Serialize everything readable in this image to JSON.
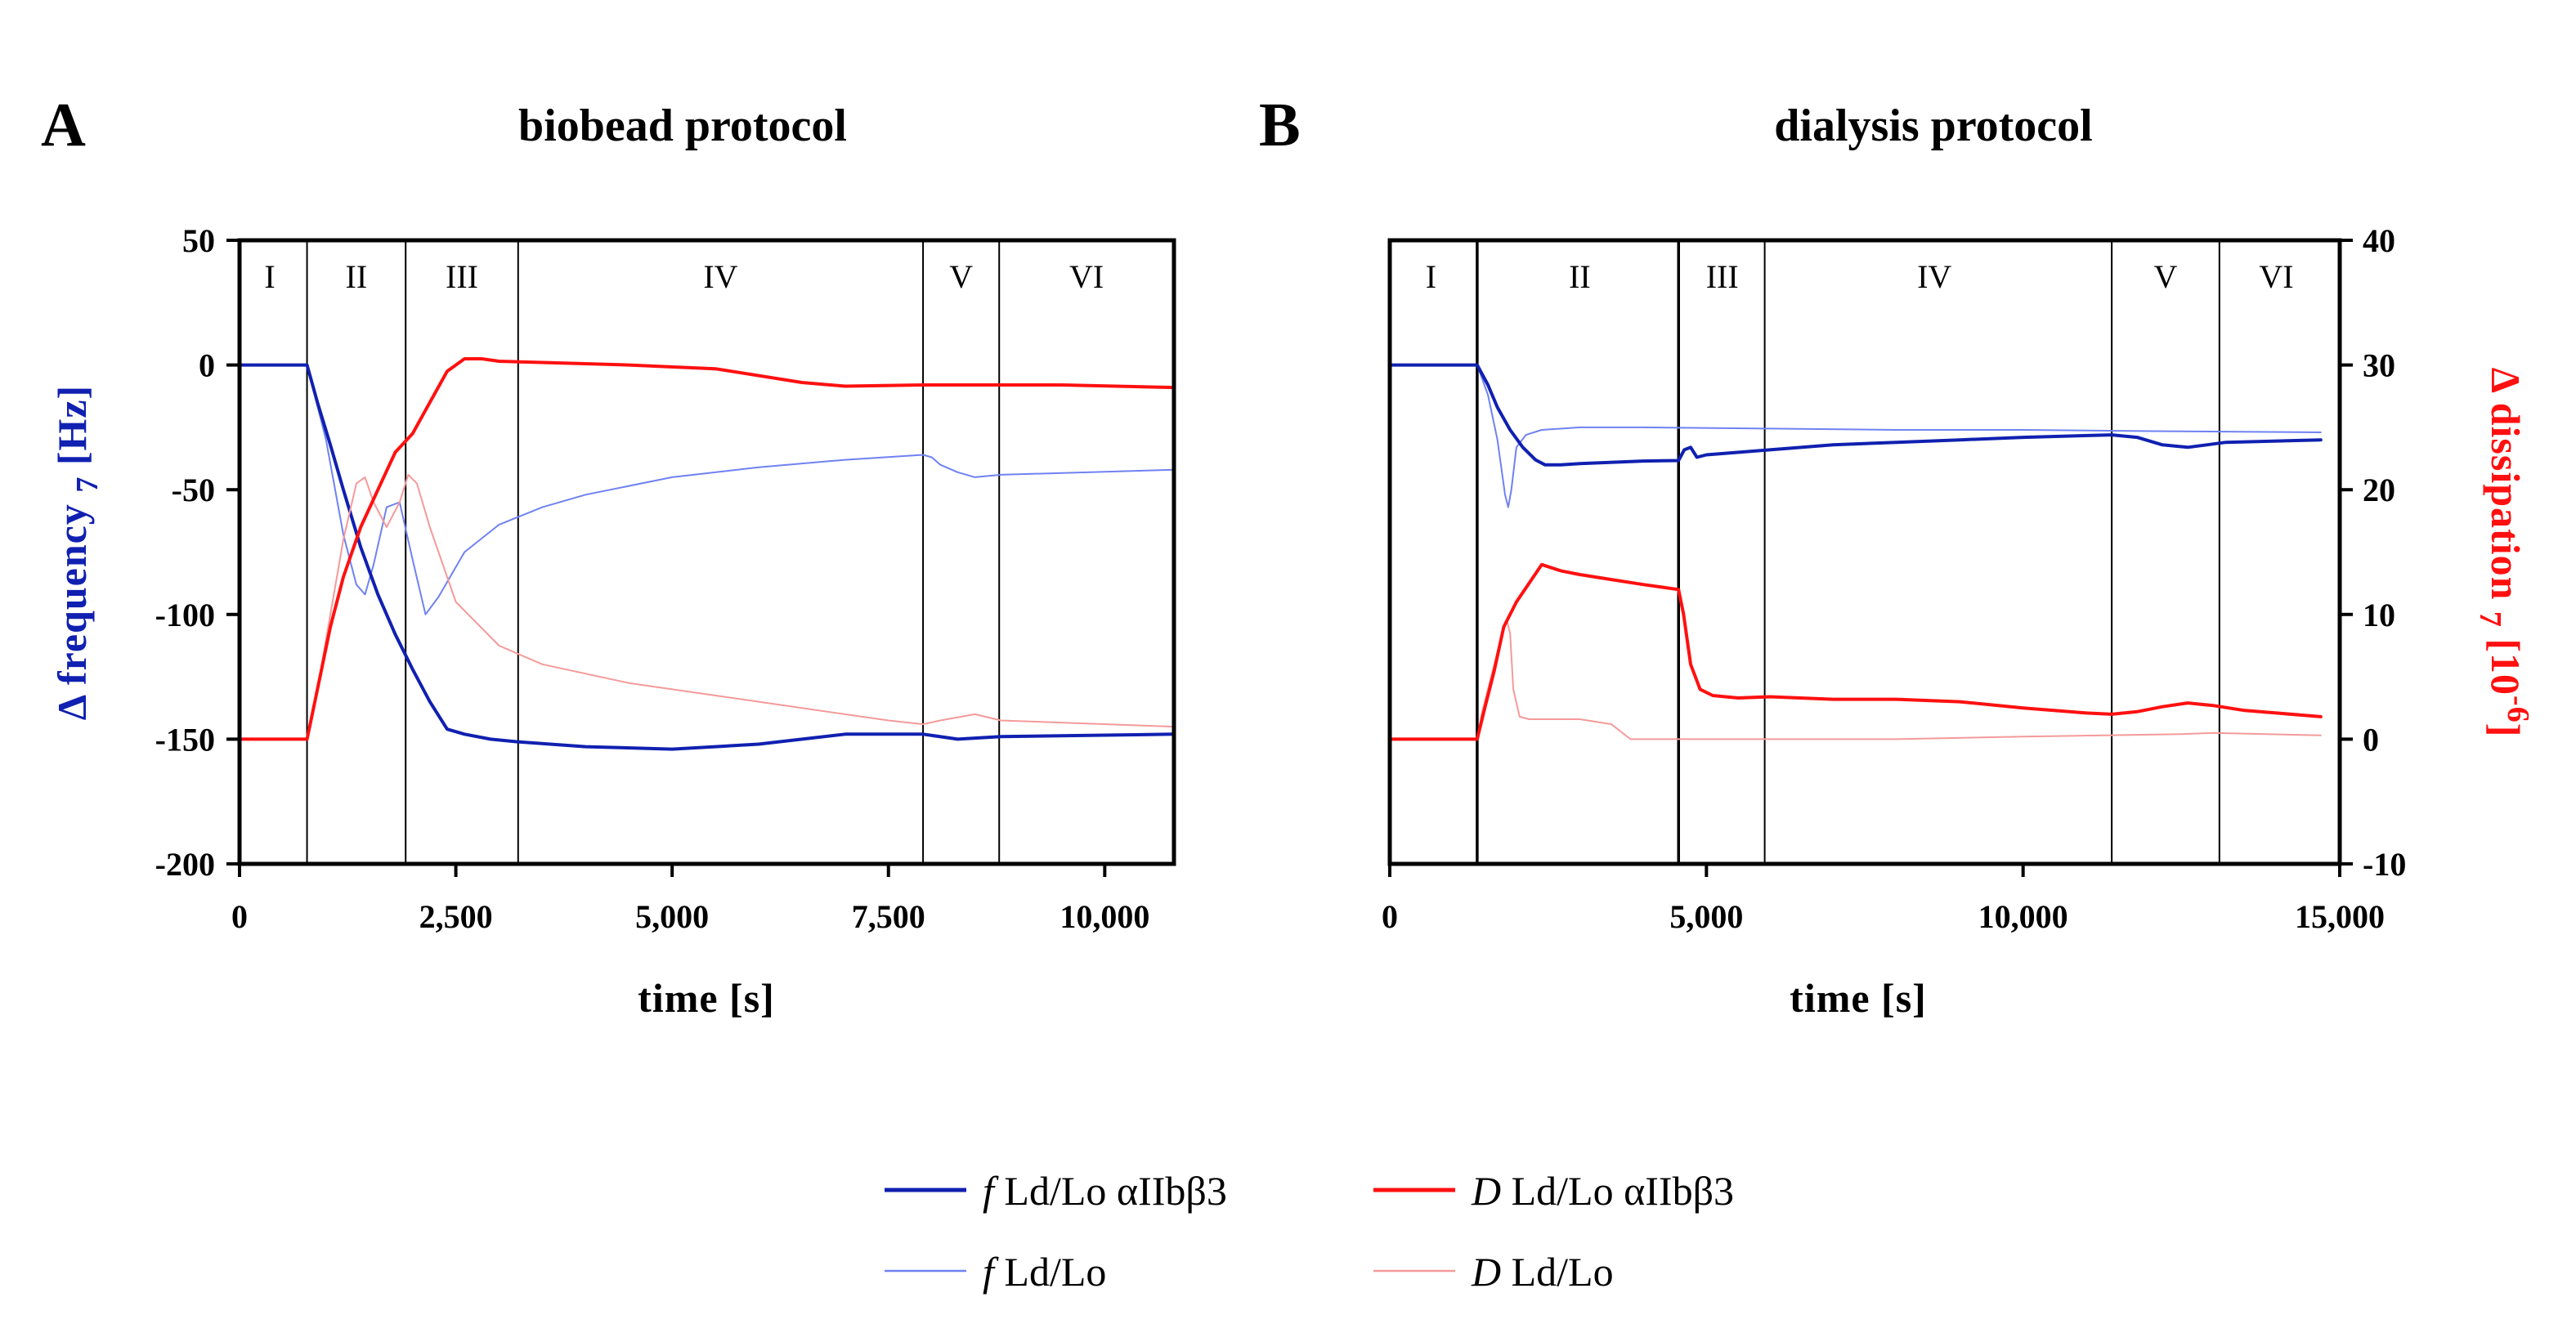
{
  "figure": {
    "colors": {
      "f_protein": "#1020b0",
      "f_control": "#6f82f2",
      "D_protein": "#ff1010",
      "D_control": "#f59a9a",
      "frame": "#000000"
    },
    "legend": {
      "items": [
        {
          "series": "f_protein",
          "italic": "f",
          "text": " Ld/Lo αIIbβ3"
        },
        {
          "series": "D_protein",
          "italic": "D",
          "text": " Ld/Lo αIIbβ3"
        },
        {
          "series": "f_control",
          "italic": "f",
          "text": " Ld/Lo"
        },
        {
          "series": "D_control",
          "italic": "D",
          "text": " Ld/Lo"
        }
      ]
    }
  },
  "chart_data": [
    {
      "type": "line",
      "panel_letter": "A",
      "title": "biobead protocol",
      "xlabel": "time [s]",
      "ylabel_left": {
        "symbol": "Δ",
        "text": " frequency ",
        "sub": "7",
        "unit": " [Hz]"
      },
      "xlim": [
        0,
        10800
      ],
      "ylim_left": [
        -200,
        50
      ],
      "ylim_right": [
        -10,
        40
      ],
      "x_ticks": [
        {
          "value": 0,
          "label": "0"
        },
        {
          "value": 2500,
          "label": "2,500"
        },
        {
          "value": 5000,
          "label": "5,000"
        },
        {
          "value": 7500,
          "label": "7,500"
        },
        {
          "value": 10000,
          "label": "10,000"
        }
      ],
      "y_ticks_left": [
        {
          "value": 50,
          "label": "50"
        },
        {
          "value": 0,
          "label": "0"
        },
        {
          "value": -50,
          "label": "-50"
        },
        {
          "value": -100,
          "label": "-100"
        },
        {
          "value": -150,
          "label": "-150"
        },
        {
          "value": -200,
          "label": "-200"
        }
      ],
      "phase_boundaries": [
        780,
        1920,
        3220,
        7900,
        8780
      ],
      "phases": [
        {
          "label": "I",
          "x": 350
        },
        {
          "label": "II",
          "x": 1350
        },
        {
          "label": "III",
          "x": 2570
        },
        {
          "label": "IV",
          "x": 5560
        },
        {
          "label": "V",
          "x": 8340
        },
        {
          "label": "VI",
          "x": 9790
        }
      ],
      "series": [
        {
          "key": "f_control",
          "axis": "left",
          "width": 2,
          "x": [
            0,
            780,
            1000,
            1200,
            1350,
            1450,
            1550,
            1700,
            1850,
            2000,
            2150,
            2300,
            2600,
            3000,
            3500,
            4000,
            5000,
            6000,
            7000,
            7900,
            8000,
            8100,
            8300,
            8500,
            8800,
            10800
          ],
          "y": [
            0,
            0,
            -30,
            -68,
            -88,
            -92,
            -80,
            -57,
            -55,
            -78,
            -100,
            -93,
            -75,
            -64,
            -57,
            -52,
            -45,
            -41,
            -38,
            -36,
            -37,
            -40,
            -43,
            -45,
            -44,
            -42
          ]
        },
        {
          "key": "f_protein",
          "axis": "left",
          "width": 4,
          "x": [
            0,
            780,
            900,
            1050,
            1200,
            1400,
            1600,
            1800,
            2000,
            2200,
            2400,
            2600,
            2900,
            3200,
            4000,
            5000,
            6000,
            7000,
            7900,
            8300,
            8800,
            10800
          ],
          "y": [
            0,
            0,
            -15,
            -32,
            -50,
            -73,
            -92,
            -108,
            -122,
            -135,
            -146,
            -148,
            -150,
            -151,
            -153,
            -154,
            -152,
            -148,
            -148,
            -150,
            -149,
            -148
          ]
        },
        {
          "key": "D_control",
          "axis": "right",
          "width": 2,
          "x": [
            0,
            780,
            900,
            1050,
            1200,
            1350,
            1450,
            1550,
            1700,
            1850,
            1950,
            2050,
            2200,
            2500,
            3000,
            3500,
            4500,
            5500,
            6500,
            7500,
            7900,
            8100,
            8500,
            8800,
            10800
          ],
          "y": [
            0,
            0,
            4,
            10,
            16,
            20.5,
            21,
            19,
            17,
            19,
            21.2,
            20.5,
            17,
            11,
            7.5,
            6,
            4.5,
            3.5,
            2.5,
            1.5,
            1.2,
            1.5,
            2,
            1.5,
            1
          ]
        },
        {
          "key": "D_protein",
          "axis": "right",
          "width": 4,
          "x": [
            0,
            780,
            900,
            1050,
            1200,
            1400,
            1600,
            1800,
            2000,
            2200,
            2400,
            2600,
            2800,
            3000,
            3500,
            4500,
            5500,
            6500,
            7000,
            7900,
            8300,
            8800,
            9500,
            10800
          ],
          "y": [
            0,
            0,
            4,
            9,
            13,
            17,
            20,
            23,
            24.5,
            27,
            29.5,
            30.5,
            30.5,
            30.3,
            30.2,
            30,
            29.7,
            28.6,
            28.3,
            28.4,
            28.4,
            28.4,
            28.4,
            28.2
          ]
        }
      ]
    },
    {
      "type": "line",
      "panel_letter": "B",
      "title": "dialysis protocol",
      "xlabel": "time [s]",
      "ylabel_right": {
        "symbol": "Δ",
        "text": " dissipation ",
        "sub": "7",
        "unit": " [10",
        "sup": "-6",
        "close": "]"
      },
      "xlim": [
        0,
        15000
      ],
      "ylim_left": [
        -200,
        50
      ],
      "ylim_right": [
        -10,
        40
      ],
      "x_ticks": [
        {
          "value": 0,
          "label": "0"
        },
        {
          "value": 5000,
          "label": "5,000"
        },
        {
          "value": 10000,
          "label": "10,000"
        },
        {
          "value": 15000,
          "label": "15,000"
        }
      ],
      "y_ticks_right": [
        {
          "value": 40,
          "label": "40"
        },
        {
          "value": 30,
          "label": "30"
        },
        {
          "value": 20,
          "label": "20"
        },
        {
          "value": 10,
          "label": "10"
        },
        {
          "value": 0,
          "label": "0"
        },
        {
          "value": -10,
          "label": "-10"
        }
      ],
      "phase_boundaries": [
        1380,
        4560,
        5920,
        11400,
        13100
      ],
      "phases": [
        {
          "label": "I",
          "x": 650
        },
        {
          "label": "II",
          "x": 3000
        },
        {
          "label": "III",
          "x": 5250
        },
        {
          "label": "IV",
          "x": 8600
        },
        {
          "label": "V",
          "x": 12250
        },
        {
          "label": "VI",
          "x": 14000
        }
      ],
      "series": [
        {
          "key": "f_control",
          "axis": "left",
          "width": 2,
          "x": [
            0,
            1380,
            1550,
            1700,
            1820,
            1870,
            1920,
            2000,
            2150,
            2400,
            3000,
            4000,
            6000,
            8000,
            10000,
            12000,
            14700
          ],
          "y": [
            0,
            0,
            -12,
            -30,
            -52,
            -57,
            -50,
            -33,
            -28,
            -26,
            -25,
            -25,
            -25.5,
            -26,
            -26,
            -26.5,
            -27
          ]
        },
        {
          "key": "f_protein",
          "axis": "left",
          "width": 4,
          "x": [
            0,
            1380,
            1550,
            1700,
            1900,
            2100,
            2300,
            2450,
            2700,
            3000,
            4000,
            4560,
            4650,
            4750,
            4850,
            5000,
            6000,
            7000,
            8000,
            9000,
            10000,
            11400,
            11800,
            12200,
            12600,
            12900,
            13200,
            14700
          ],
          "y": [
            0,
            0,
            -8,
            -17,
            -26,
            -33,
            -38,
            -40,
            -40,
            -39.5,
            -38.5,
            -38.3,
            -34,
            -33,
            -37,
            -36,
            -34,
            -32,
            -31,
            -30,
            -29,
            -28,
            -29,
            -32,
            -33,
            -32,
            -31,
            -30
          ]
        },
        {
          "key": "D_control",
          "axis": "right",
          "width": 2,
          "x": [
            0,
            1380,
            1450,
            1600,
            1750,
            1850,
            1900,
            1950,
            2050,
            2200,
            3000,
            3500,
            3800,
            4560,
            6000,
            8000,
            10000,
            12500,
            13000,
            14700
          ],
          "y": [
            0,
            0,
            2,
            5,
            8,
            9.5,
            8.5,
            4,
            1.8,
            1.6,
            1.6,
            1.2,
            0,
            0,
            0,
            0,
            0.2,
            0.4,
            0.5,
            0.3
          ]
        },
        {
          "key": "D_protein",
          "axis": "right",
          "width": 4,
          "x": [
            0,
            1380,
            1500,
            1650,
            1800,
            2000,
            2200,
            2400,
            2700,
            3000,
            3500,
            4000,
            4560,
            4640,
            4750,
            4900,
            5100,
            5500,
            6000,
            7000,
            8000,
            9000,
            10000,
            11000,
            11400,
            11800,
            12200,
            12600,
            13000,
            13500,
            14000,
            14700
          ],
          "y": [
            0,
            0,
            2.5,
            5.5,
            9,
            11,
            12.5,
            14,
            13.5,
            13.2,
            12.8,
            12.4,
            12,
            10,
            6,
            4,
            3.5,
            3.3,
            3.4,
            3.2,
            3.2,
            3,
            2.5,
            2.1,
            2,
            2.2,
            2.6,
            2.9,
            2.7,
            2.3,
            2.1,
            1.8
          ]
        }
      ]
    }
  ]
}
